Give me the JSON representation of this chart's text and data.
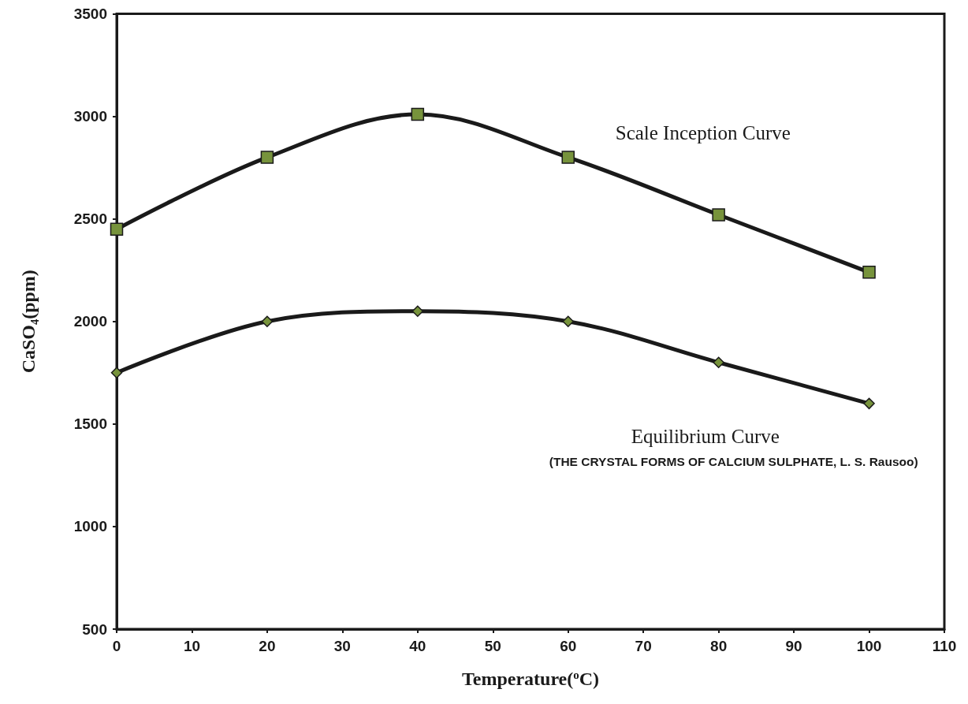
{
  "chart_data": {
    "type": "line",
    "xlabel": "Temperature($^{o}$C)",
    "ylabel": "CaSO₄(ppm)",
    "x": [
      0,
      20,
      40,
      60,
      80,
      100
    ],
    "series": [
      {
        "color": "#77933c",
        "values": [
          2450,
          2800,
          3010,
          2800,
          2520,
          2240
        ],
        "marker": "square"
      },
      {
        "color": "#77933c",
        "values": [
          1750,
          2000,
          2050,
          2000,
          1800,
          1600
        ],
        "marker": "diamond"
      }
    ],
    "xlim": [
      0,
      110
    ],
    "xticks": [
      0,
      10,
      20,
      30,
      40,
      50,
      60,
      70,
      80,
      90,
      100,
      110
    ],
    "ylim": [
      500,
      3500
    ],
    "yticks": [
      500,
      1000,
      1500,
      2000,
      2500,
      3000,
      3500
    ],
    "grid": false,
    "annotations": [
      "Scale Inception Curve",
      "Equilibrium Curve",
      "(THE CRYSTAL FORMS OF CALCIUM SULPHATE, L. S. Rausoo)"
    ]
  }
}
